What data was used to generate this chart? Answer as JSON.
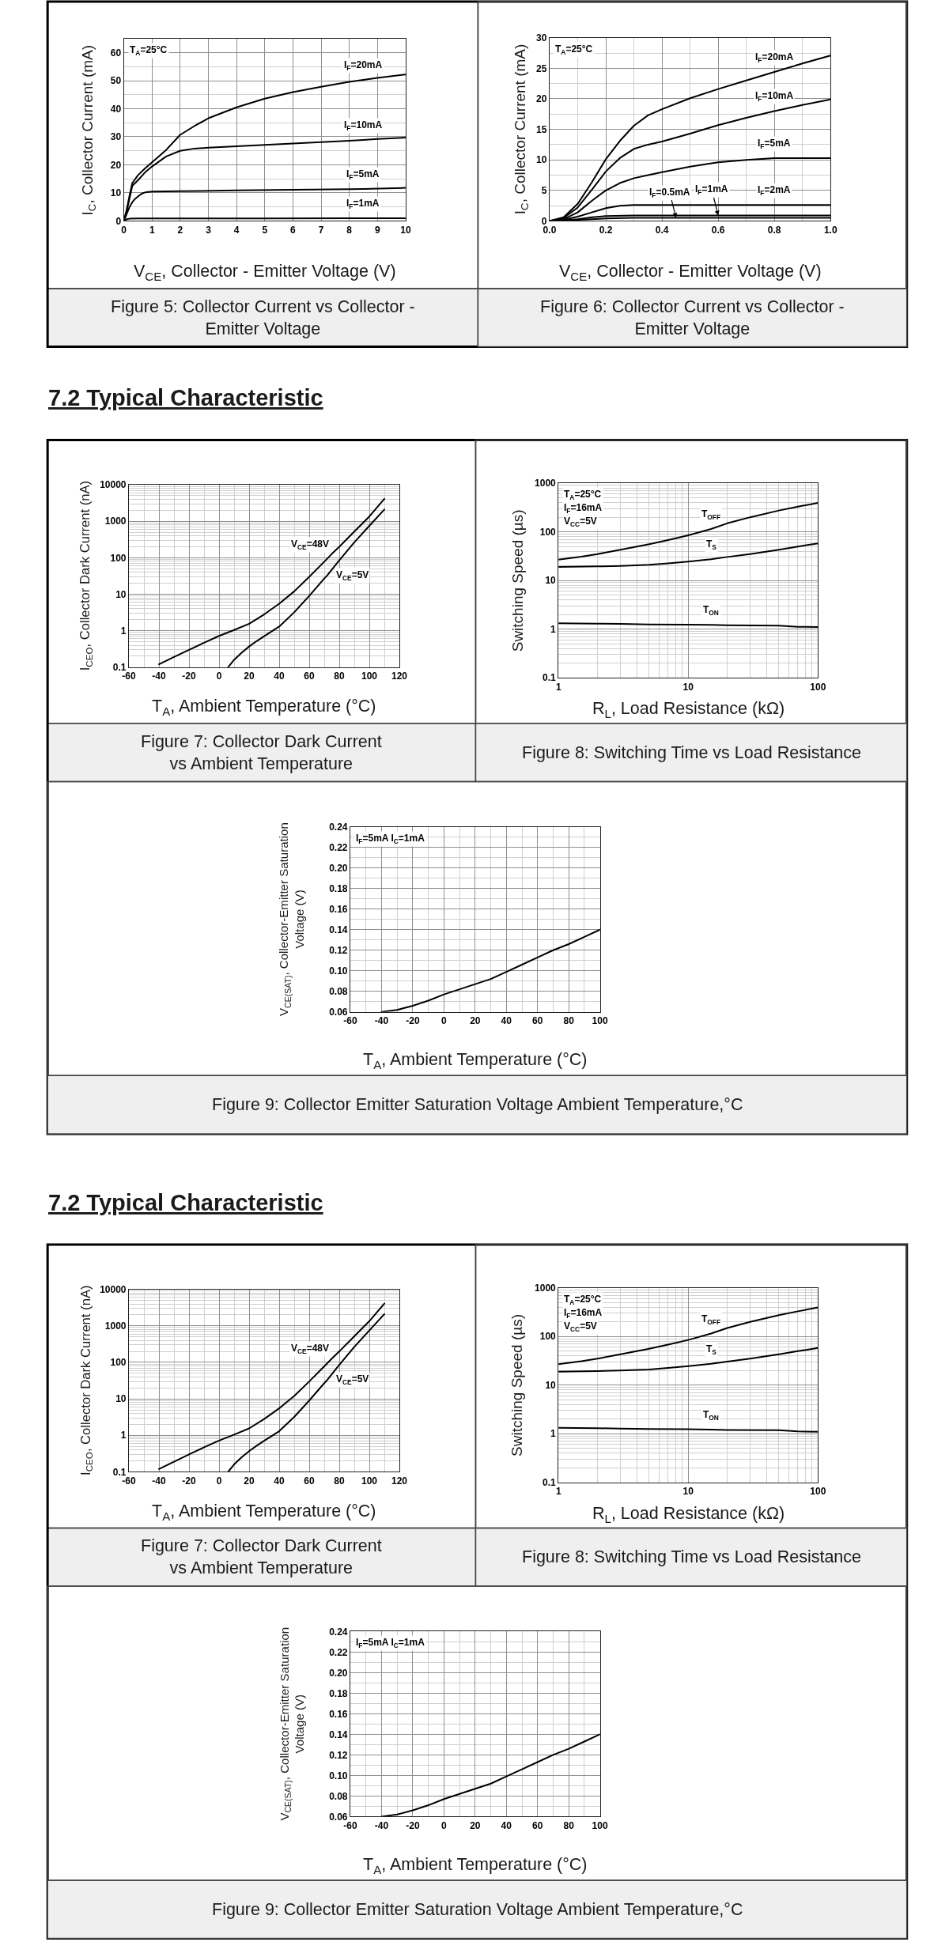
{
  "chart_data": [
    {
      "type": "line",
      "title": "Figure 5: Collector Current vs Collector -\nEmitter Voltage",
      "xlabel": "V$_{CE}$, Collector - Emitter Voltage (V)",
      "ylabel": "I$_{C}$, Collector Current (mA)",
      "xlim": [
        0,
        10
      ],
      "ylim": [
        0,
        65
      ],
      "xticks": [
        0,
        1,
        2,
        3,
        4,
        5,
        6,
        7,
        8,
        9,
        10
      ],
      "yticks": [
        0,
        {
          "value": 5,
          "label": null
        },
        10,
        {
          "value": 15,
          "label": null
        },
        20,
        {
          "value": 25,
          "label": null
        },
        30,
        {
          "value": 35,
          "label": null
        },
        40,
        {
          "value": 45,
          "label": null
        },
        50,
        {
          "value": 55,
          "label": null
        },
        60
      ],
      "grid": true,
      "annotations": [
        "T$_{A}$=25°C",
        {
          "text": "I$_{F}$=20mA",
          "x": 8.5,
          "y": 50.3
        },
        {
          "text": "I$_{F}$=10mA",
          "x": 8.5,
          "y": 28.9
        },
        {
          "text": "I$_{F}$=5mA",
          "x": 8.5,
          "y": 11.4
        },
        {
          "text": "I$_{F}$=1mA",
          "x": 8.5,
          "y": 1
        }
      ],
      "series": [
        {
          "color": "#000000",
          "x": [
            0,
            0.1,
            0.2,
            0.3,
            0.5,
            0.75,
            1,
            1.5,
            2,
            2.5,
            3,
            4,
            5,
            6,
            7,
            8,
            8.5,
            9,
            10
          ],
          "values": [
            0,
            4,
            9,
            13.5,
            16.3,
            18.7,
            20.9,
            25.3,
            30.7,
            33.8,
            36.6,
            40.5,
            43.6,
            45.9,
            47.8,
            49.6,
            50.3,
            51,
            52.2
          ]
        },
        {
          "color": "#000000",
          "x": [
            0,
            0.1,
            0.2,
            0.3,
            0.5,
            0.75,
            1,
            1.5,
            2,
            2.5,
            3,
            4,
            5,
            6,
            7,
            8,
            8.5,
            9,
            10
          ],
          "values": [
            0,
            3.5,
            8,
            12.5,
            14.5,
            17.3,
            19.4,
            23,
            25,
            25.8,
            26.1,
            26.6,
            27.1,
            27.6,
            28.1,
            28.6,
            28.9,
            29.2,
            29.7
          ]
        },
        {
          "color": "#000000",
          "x": [
            0,
            0.1,
            0.2,
            0.3,
            0.4,
            0.5,
            0.6,
            0.7,
            0.8,
            1,
            2,
            4,
            6,
            8,
            8.5,
            10
          ],
          "values": [
            0,
            2.5,
            5,
            6.7,
            7.9,
            8.7,
            9.5,
            10,
            10.3,
            10.5,
            10.6,
            10.9,
            11.1,
            11.3,
            11.4,
            11.8
          ]
        },
        {
          "color": "#000000",
          "x": [
            0,
            0.1,
            0.2,
            0.5,
            2,
            5,
            8,
            8.5,
            10
          ],
          "values": [
            0,
            0.6,
            0.8,
            0.9,
            0.9,
            0.9,
            1,
            1,
            1
          ]
        }
      ]
    },
    {
      "type": "line",
      "title": "Figure 6: Collector Current vs Collector -\nEmitter Voltage",
      "xlabel": "V$_{CE}$, Collector - Emitter Voltage (V)",
      "ylabel": "I$_{C}$, Collector Current (mA)",
      "xlim": [
        0,
        1
      ],
      "ylim": [
        0,
        30
      ],
      "xticks": [
        {
          "value": 0,
          "label": "0.0"
        },
        {
          "value": 0.1,
          "label": null
        },
        0.2,
        {
          "value": 0.3,
          "label": null
        },
        0.4,
        {
          "value": 0.5,
          "label": null
        },
        0.6,
        {
          "value": 0.7,
          "label": null
        },
        0.8,
        {
          "value": 0.9,
          "label": null
        },
        {
          "value": 1,
          "label": "1.0"
        }
      ],
      "yticks": [
        0,
        {
          "value": 2.5,
          "label": null
        },
        5,
        {
          "value": 7.5,
          "label": null
        },
        10,
        {
          "value": 12.5,
          "label": null
        },
        15,
        {
          "value": 17.5,
          "label": null
        },
        20,
        {
          "value": 22.5,
          "label": null
        },
        25,
        {
          "value": 27.5,
          "label": null
        },
        30
      ],
      "grid": true,
      "annotations": [
        "T$_{A}$=25°C",
        {
          "text": "I$_{F}$=20mA",
          "x": 0.8,
          "y": 24.4
        },
        {
          "text": "I$_{F}$=10mA",
          "x": 0.8,
          "y": 18
        },
        {
          "text": "I$_{F}$=5mA",
          "x": 0.8,
          "y": 10.3
        },
        {
          "text": "I$_{F}$=2mA",
          "x": 0.8,
          "y": 2.6
        },
        {
          "text": "I$_{F}$=0.5mA",
          "x": 0.45,
          "y": 0.5
        },
        {
          "text": "I$_{F}$=1mA",
          "x": 0.6,
          "y": 0.9
        }
      ],
      "series": [
        {
          "color": "#000000",
          "x": [
            0,
            0.05,
            0.1,
            0.15,
            0.2,
            0.25,
            0.3,
            0.35,
            0.4,
            0.5,
            0.6,
            0.7,
            0.8,
            0.9,
            1.0
          ],
          "values": [
            0,
            0.6,
            2.8,
            6.3,
            10.1,
            13.1,
            15.6,
            17.3,
            18.3,
            20.1,
            21.6,
            23,
            24.4,
            25.8,
            27.1
          ]
        },
        {
          "color": "#000000",
          "x": [
            0,
            0.05,
            0.1,
            0.15,
            0.2,
            0.25,
            0.3,
            0.35,
            0.4,
            0.5,
            0.6,
            0.7,
            0.8,
            0.9,
            1.0
          ],
          "values": [
            0,
            0.5,
            2.2,
            5.1,
            8.1,
            10.3,
            11.8,
            12.5,
            13,
            14.3,
            15.7,
            16.9,
            18,
            19,
            19.9
          ]
        },
        {
          "color": "#000000",
          "x": [
            0,
            0.05,
            0.1,
            0.15,
            0.2,
            0.25,
            0.3,
            0.35,
            0.4,
            0.5,
            0.6,
            0.7,
            0.8,
            0.9,
            1.0
          ],
          "values": [
            0,
            0.3,
            1.4,
            3.3,
            5,
            6.2,
            7,
            7.5,
            8,
            8.9,
            9.6,
            10,
            10.3,
            10.3,
            10.3
          ]
        },
        {
          "color": "#000000",
          "x": [
            0,
            0.05,
            0.1,
            0.15,
            0.2,
            0.25,
            0.3,
            0.4,
            0.6,
            0.8,
            1.0
          ],
          "values": [
            0,
            0.2,
            0.7,
            1.4,
            2.1,
            2.5,
            2.6,
            2.6,
            2.6,
            2.6,
            2.6
          ]
        },
        {
          "color": "#000000",
          "x": [
            0,
            0.05,
            0.1,
            0.15,
            0.2,
            0.3,
            0.5,
            0.6,
            1.0
          ],
          "values": [
            0,
            0.1,
            0.3,
            0.6,
            0.8,
            0.9,
            0.9,
            0.9,
            0.9
          ]
        },
        {
          "color": "#000000",
          "x": [
            0,
            0.1,
            0.2,
            0.3,
            0.45,
            0.5,
            1.0
          ],
          "values": [
            0,
            0.2,
            0.4,
            0.5,
            0.5,
            0.5,
            0.5
          ]
        }
      ]
    },
    {
      "type": "line",
      "subtitle": "7.2 Typical Characteristic",
      "title": "Figure 7: Collector Dark Current\nvs Ambient Temperature",
      "xlabel": "T$_{A}$, Ambient Temperature (°C)",
      "ylabel": "I$_{CEO}$, Collector Dark Current (nA)",
      "log": true,
      "xlim": [
        -60,
        120
      ],
      "ylim": [
        0.1,
        10000
      ],
      "xticks": [
        -60,
        {
          "value": -50,
          "label": null
        },
        -40,
        {
          "value": -30,
          "label": null
        },
        -20,
        {
          "value": -10,
          "label": null
        },
        0,
        {
          "value": 10,
          "label": null
        },
        20,
        {
          "value": 30,
          "label": null
        },
        40,
        {
          "value": 50,
          "label": null
        },
        60,
        {
          "value": 70,
          "label": null
        },
        80,
        {
          "value": 90,
          "label": null
        },
        100,
        {
          "value": 110,
          "label": null
        },
        120
      ],
      "yticks": [
        0.1,
        {
          "value": 0.2,
          "label": null
        },
        {
          "value": 0.3,
          "label": null
        },
        {
          "value": 0.4,
          "label": null
        },
        {
          "value": 0.5,
          "label": null
        },
        {
          "value": 0.6,
          "label": null
        },
        {
          "value": 0.7,
          "label": null
        },
        {
          "value": 0.8,
          "label": null
        },
        {
          "value": 0.9,
          "label": null
        },
        1,
        {
          "value": 2,
          "label": null
        },
        {
          "value": 3,
          "label": null
        },
        {
          "value": 4,
          "label": null
        },
        {
          "value": 5,
          "label": null
        },
        {
          "value": 6,
          "label": null
        },
        {
          "value": 7,
          "label": null
        },
        {
          "value": 8,
          "label": null
        },
        {
          "value": 9,
          "label": null
        },
        10,
        {
          "value": 20,
          "label": null
        },
        {
          "value": 30,
          "label": null
        },
        {
          "value": 40,
          "label": null
        },
        {
          "value": 50,
          "label": null
        },
        {
          "value": 60,
          "label": null
        },
        {
          "value": 70,
          "label": null
        },
        {
          "value": 80,
          "label": null
        },
        {
          "value": 90,
          "label": null
        },
        100,
        {
          "value": 200,
          "label": null
        },
        {
          "value": 300,
          "label": null
        },
        {
          "value": 400,
          "label": null
        },
        {
          "value": 500,
          "label": null
        },
        {
          "value": 600,
          "label": null
        },
        {
          "value": 700,
          "label": null
        },
        {
          "value": 800,
          "label": null
        },
        {
          "value": 900,
          "label": null
        },
        1000,
        {
          "value": 2000,
          "label": null
        },
        {
          "value": 3000,
          "label": null
        },
        {
          "value": 4000,
          "label": null
        },
        {
          "value": 5000,
          "label": null
        },
        {
          "value": 6000,
          "label": null
        },
        {
          "value": 7000,
          "label": null
        },
        {
          "value": 8000,
          "label": null
        },
        {
          "value": 9000,
          "label": null
        },
        10000
      ],
      "grid": true,
      "annotations": [
        {
          "text": "V$_{CE}$=48V",
          "x": 75,
          "y": 127
        },
        {
          "text": "V$_{CE}$=5V",
          "x": 72,
          "y": 33
        }
      ],
      "series": [
        {
          "color": "#000000",
          "x": [
            -40,
            -30,
            -20,
            -10,
            0,
            10,
            20,
            30,
            40,
            50,
            60,
            70,
            75,
            80,
            90,
            100,
            110
          ],
          "values": [
            0.12,
            0.19,
            0.3,
            0.47,
            0.72,
            1.05,
            1.55,
            2.8,
            5.5,
            12,
            30,
            78,
            127,
            200,
            520,
            1350,
            4100
          ]
        },
        {
          "color": "#000000",
          "x": [
            6,
            10,
            15,
            20,
            25,
            30,
            40,
            50,
            60,
            70,
            72,
            80,
            90,
            100,
            110
          ],
          "values": [
            0.1,
            0.16,
            0.25,
            0.37,
            0.52,
            0.71,
            1.3,
            3.2,
            9,
            27,
            33,
            85,
            265,
            750,
            2100
          ]
        }
      ]
    },
    {
      "type": "line",
      "title": "Figure 8: Switching Time vs Load Resistance",
      "xlabel": "R$_{L}$, Load Resistance (kΩ)",
      "ylabel": "Switching Speed (µs)",
      "log": "xy",
      "xlim": [
        1,
        100
      ],
      "ylim": [
        0.1,
        1000
      ],
      "xticks": [
        1,
        {
          "value": 2,
          "label": null
        },
        {
          "value": 3,
          "label": null
        },
        {
          "value": 4,
          "label": null
        },
        {
          "value": 5,
          "label": null
        },
        {
          "value": 6,
          "label": null
        },
        {
          "value": 7,
          "label": null
        },
        {
          "value": 8,
          "label": null
        },
        {
          "value": 9,
          "label": null
        },
        10,
        {
          "value": 20,
          "label": null
        },
        {
          "value": 30,
          "label": null
        },
        {
          "value": 40,
          "label": null
        },
        {
          "value": 50,
          "label": null
        },
        {
          "value": 60,
          "label": null
        },
        {
          "value": 70,
          "label": null
        },
        {
          "value": 80,
          "label": null
        },
        {
          "value": 90,
          "label": null
        },
        100
      ],
      "yticks": [
        0.1,
        {
          "value": 0.2,
          "label": null
        },
        {
          "value": 0.3,
          "label": null
        },
        {
          "value": 0.4,
          "label": null
        },
        {
          "value": 0.5,
          "label": null
        },
        {
          "value": 0.6,
          "label": null
        },
        {
          "value": 0.7,
          "label": null
        },
        {
          "value": 0.8,
          "label": null
        },
        {
          "value": 0.9,
          "label": null
        },
        1,
        {
          "value": 2,
          "label": null
        },
        {
          "value": 3,
          "label": null
        },
        {
          "value": 4,
          "label": null
        },
        {
          "value": 5,
          "label": null
        },
        {
          "value": 6,
          "label": null
        },
        {
          "value": 7,
          "label": null
        },
        {
          "value": 8,
          "label": null
        },
        {
          "value": 9,
          "label": null
        },
        10,
        {
          "value": 20,
          "label": null
        },
        {
          "value": 30,
          "label": null
        },
        {
          "value": 40,
          "label": null
        },
        {
          "value": 50,
          "label": null
        },
        {
          "value": 60,
          "label": null
        },
        {
          "value": 70,
          "label": null
        },
        {
          "value": 80,
          "label": null
        },
        {
          "value": 90,
          "label": null
        },
        100,
        {
          "value": 200,
          "label": null
        },
        {
          "value": 300,
          "label": null
        },
        {
          "value": 400,
          "label": null
        },
        {
          "value": 500,
          "label": null
        },
        {
          "value": 600,
          "label": null
        },
        {
          "value": 700,
          "label": null
        },
        {
          "value": 800,
          "label": null
        },
        {
          "value": 900,
          "label": null
        },
        1000
      ],
      "grid": true,
      "annotations": [
        "T$_{A}$=25°C",
        "I$_{F}$=16mA",
        "V$_{CC}$=5V",
        {
          "text": "T$_{OFF}$",
          "x": 15,
          "y": 115
        },
        {
          "text": "T$_{S}$",
          "x": 15,
          "y": 27.5
        },
        {
          "text": "T$_{ON}$",
          "x": 15,
          "y": 1.22
        }
      ],
      "series": [
        {
          "color": "#000000",
          "x": [
            1,
            1.5,
            2,
            3,
            5,
            7,
            10,
            15,
            20,
            30,
            50,
            70,
            100
          ],
          "values": [
            27,
            31,
            35,
            43,
            56,
            68,
            85,
            115,
            150,
            200,
            275,
            330,
            395
          ]
        },
        {
          "color": "#000000",
          "x": [
            1,
            2,
            3,
            5,
            7,
            10,
            15,
            20,
            30,
            50,
            70,
            100
          ],
          "values": [
            19,
            19.5,
            20,
            21,
            22.5,
            24.5,
            27.5,
            30.5,
            35,
            43,
            50,
            58
          ]
        },
        {
          "color": "#000000",
          "x": [
            1,
            2,
            3,
            5,
            10,
            15,
            20,
            50,
            70,
            100
          ],
          "values": [
            1.32,
            1.3,
            1.28,
            1.25,
            1.24,
            1.22,
            1.2,
            1.18,
            1.12,
            1.1
          ]
        }
      ]
    },
    {
      "type": "line",
      "title": "Figure 9: Collector Emitter Saturation Voltage Ambient Temperature,°C",
      "xlabel": "T$_{A}$, Ambient Temperature (°C)",
      "ylabel": "V$_{CE(SAT)}$, Collector-Emitter Saturation\nVoltage (V)",
      "xlim": [
        -60,
        100
      ],
      "ylim": [
        0.06,
        0.24
      ],
      "xticks": [
        -60,
        {
          "value": -50,
          "label": null
        },
        -40,
        {
          "value": -30,
          "label": null
        },
        -20,
        {
          "value": -10,
          "label": null
        },
        0,
        {
          "value": 10,
          "label": null
        },
        20,
        {
          "value": 30,
          "label": null
        },
        40,
        {
          "value": 50,
          "label": null
        },
        60,
        {
          "value": 70,
          "label": null
        },
        80,
        {
          "value": 90,
          "label": null
        },
        100
      ],
      "yticks": [
        0.06,
        {
          "value": 0.07,
          "label": null
        },
        0.08,
        {
          "value": 0.09,
          "label": null
        },
        {
          "value": 0.1,
          "label": "0.10"
        },
        {
          "value": 0.11,
          "label": null
        },
        0.12,
        {
          "value": 0.13,
          "label": null
        },
        0.14,
        {
          "value": 0.15,
          "label": null
        },
        0.16,
        {
          "value": 0.17,
          "label": null
        },
        0.18,
        {
          "value": 0.19,
          "label": null
        },
        {
          "value": 0.2,
          "label": "0.20"
        },
        {
          "value": 0.21,
          "label": null
        },
        0.22,
        {
          "value": 0.23,
          "label": null
        },
        0.24
      ],
      "grid": true,
      "annotations": [
        "I$_{F}$=5mA I$_{C}$=1mA"
      ],
      "series": [
        {
          "color": "#000000",
          "x": [
            -40,
            -30,
            -20,
            -10,
            0,
            10,
            20,
            30,
            40,
            50,
            60,
            70,
            80,
            90,
            100
          ],
          "values": [
            0.06,
            0.062,
            0.066,
            0.071,
            0.077,
            0.082,
            0.087,
            0.092,
            0.099,
            0.106,
            0.113,
            0.12,
            0.126,
            0.133,
            0.14
          ]
        }
      ]
    },
    {
      "type": "line",
      "subtitle": "7.2 Typical Characteristic",
      "title": "Figure 7: Collector Dark Current\nvs Ambient Temperature",
      "xlabel": "T$_{A}$, Ambient Temperature (°C)",
      "ylabel": "I$_{CEO}$, Collector Dark Current (nA)",
      "log": true,
      "xlim": [
        -60,
        120
      ],
      "ylim": [
        0.1,
        10000
      ],
      "xticks": [
        -60,
        {
          "value": -50,
          "label": null
        },
        -40,
        {
          "value": -30,
          "label": null
        },
        -20,
        {
          "value": -10,
          "label": null
        },
        0,
        {
          "value": 10,
          "label": null
        },
        20,
        {
          "value": 30,
          "label": null
        },
        40,
        {
          "value": 50,
          "label": null
        },
        60,
        {
          "value": 70,
          "label": null
        },
        80,
        {
          "value": 90,
          "label": null
        },
        100,
        {
          "value": 110,
          "label": null
        },
        120
      ],
      "yticks": [
        0.1,
        {
          "value": 0.2,
          "label": null
        },
        {
          "value": 0.3,
          "label": null
        },
        {
          "value": 0.4,
          "label": null
        },
        {
          "value": 0.5,
          "label": null
        },
        {
          "value": 0.6,
          "label": null
        },
        {
          "value": 0.7,
          "label": null
        },
        {
          "value": 0.8,
          "label": null
        },
        {
          "value": 0.9,
          "label": null
        },
        1,
        {
          "value": 2,
          "label": null
        },
        {
          "value": 3,
          "label": null
        },
        {
          "value": 4,
          "label": null
        },
        {
          "value": 5,
          "label": null
        },
        {
          "value": 6,
          "label": null
        },
        {
          "value": 7,
          "label": null
        },
        {
          "value": 8,
          "label": null
        },
        {
          "value": 9,
          "label": null
        },
        10,
        {
          "value": 20,
          "label": null
        },
        {
          "value": 30,
          "label": null
        },
        {
          "value": 40,
          "label": null
        },
        {
          "value": 50,
          "label": null
        },
        {
          "value": 60,
          "label": null
        },
        {
          "value": 70,
          "label": null
        },
        {
          "value": 80,
          "label": null
        },
        {
          "value": 90,
          "label": null
        },
        100,
        {
          "value": 200,
          "label": null
        },
        {
          "value": 300,
          "label": null
        },
        {
          "value": 400,
          "label": null
        },
        {
          "value": 500,
          "label": null
        },
        {
          "value": 600,
          "label": null
        },
        {
          "value": 700,
          "label": null
        },
        {
          "value": 800,
          "label": null
        },
        {
          "value": 900,
          "label": null
        },
        1000,
        {
          "value": 2000,
          "label": null
        },
        {
          "value": 3000,
          "label": null
        },
        {
          "value": 4000,
          "label": null
        },
        {
          "value": 5000,
          "label": null
        },
        {
          "value": 6000,
          "label": null
        },
        {
          "value": 7000,
          "label": null
        },
        {
          "value": 8000,
          "label": null
        },
        {
          "value": 9000,
          "label": null
        },
        10000
      ],
      "grid": true,
      "annotations": [
        {
          "text": "V$_{CE}$=48V",
          "x": 75,
          "y": 127
        },
        {
          "text": "V$_{CE}$=5V",
          "x": 72,
          "y": 33
        }
      ],
      "series": [
        {
          "color": "#000000",
          "x": [
            -40,
            -30,
            -20,
            -10,
            0,
            10,
            20,
            30,
            40,
            50,
            60,
            70,
            75,
            80,
            90,
            100,
            110
          ],
          "values": [
            0.12,
            0.19,
            0.3,
            0.47,
            0.72,
            1.05,
            1.55,
            2.8,
            5.5,
            12,
            30,
            78,
            127,
            200,
            520,
            1350,
            4100
          ]
        },
        {
          "color": "#000000",
          "x": [
            6,
            10,
            15,
            20,
            25,
            30,
            40,
            50,
            60,
            70,
            72,
            80,
            90,
            100,
            110
          ],
          "values": [
            0.1,
            0.16,
            0.25,
            0.37,
            0.52,
            0.71,
            1.3,
            3.2,
            9,
            27,
            33,
            85,
            265,
            750,
            2100
          ]
        }
      ]
    },
    {
      "type": "line",
      "title": "Figure 8: Switching Time vs Load Resistance",
      "xlabel": "R$_{L}$, Load Resistance (kΩ)",
      "ylabel": "Switching Speed (µs)",
      "log": "xy",
      "xlim": [
        1,
        100
      ],
      "ylim": [
        0.1,
        1000
      ],
      "xticks": [
        1,
        {
          "value": 2,
          "label": null
        },
        {
          "value": 3,
          "label": null
        },
        {
          "value": 4,
          "label": null
        },
        {
          "value": 5,
          "label": null
        },
        {
          "value": 6,
          "label": null
        },
        {
          "value": 7,
          "label": null
        },
        {
          "value": 8,
          "label": null
        },
        {
          "value": 9,
          "label": null
        },
        10,
        {
          "value": 20,
          "label": null
        },
        {
          "value": 30,
          "label": null
        },
        {
          "value": 40,
          "label": null
        },
        {
          "value": 50,
          "label": null
        },
        {
          "value": 60,
          "label": null
        },
        {
          "value": 70,
          "label": null
        },
        {
          "value": 80,
          "label": null
        },
        {
          "value": 90,
          "label": null
        },
        100
      ],
      "yticks": [
        0.1,
        {
          "value": 0.2,
          "label": null
        },
        {
          "value": 0.3,
          "label": null
        },
        {
          "value": 0.4,
          "label": null
        },
        {
          "value": 0.5,
          "label": null
        },
        {
          "value": 0.6,
          "label": null
        },
        {
          "value": 0.7,
          "label": null
        },
        {
          "value": 0.8,
          "label": null
        },
        {
          "value": 0.9,
          "label": null
        },
        1,
        {
          "value": 2,
          "label": null
        },
        {
          "value": 3,
          "label": null
        },
        {
          "value": 4,
          "label": null
        },
        {
          "value": 5,
          "label": null
        },
        {
          "value": 6,
          "label": null
        },
        {
          "value": 7,
          "label": null
        },
        {
          "value": 8,
          "label": null
        },
        {
          "value": 9,
          "label": null
        },
        10,
        {
          "value": 20,
          "label": null
        },
        {
          "value": 30,
          "label": null
        },
        {
          "value": 40,
          "label": null
        },
        {
          "value": 50,
          "label": null
        },
        {
          "value": 60,
          "label": null
        },
        {
          "value": 70,
          "label": null
        },
        {
          "value": 80,
          "label": null
        },
        {
          "value": 90,
          "label": null
        },
        100,
        {
          "value": 200,
          "label": null
        },
        {
          "value": 300,
          "label": null
        },
        {
          "value": 400,
          "label": null
        },
        {
          "value": 500,
          "label": null
        },
        {
          "value": 600,
          "label": null
        },
        {
          "value": 700,
          "label": null
        },
        {
          "value": 800,
          "label": null
        },
        {
          "value": 900,
          "label": null
        },
        1000
      ],
      "grid": true,
      "annotations": [
        "T$_{A}$=25°C",
        "I$_{F}$=16mA",
        "V$_{CC}$=5V",
        {
          "text": "T$_{OFF}$",
          "x": 15,
          "y": 115
        },
        {
          "text": "T$_{S}$",
          "x": 15,
          "y": 27.5
        },
        {
          "text": "T$_{ON}$",
          "x": 15,
          "y": 1.22
        }
      ],
      "series": [
        {
          "color": "#000000",
          "x": [
            1,
            1.5,
            2,
            3,
            5,
            7,
            10,
            15,
            20,
            30,
            50,
            70,
            100
          ],
          "values": [
            27,
            31,
            35,
            43,
            56,
            68,
            85,
            115,
            150,
            200,
            275,
            330,
            395
          ]
        },
        {
          "color": "#000000",
          "x": [
            1,
            2,
            3,
            5,
            7,
            10,
            15,
            20,
            30,
            50,
            70,
            100
          ],
          "values": [
            19,
            19.5,
            20,
            21,
            22.5,
            24.5,
            27.5,
            30.5,
            35,
            43,
            50,
            58
          ]
        },
        {
          "color": "#000000",
          "x": [
            1,
            2,
            3,
            5,
            10,
            15,
            20,
            50,
            70,
            100
          ],
          "values": [
            1.32,
            1.3,
            1.28,
            1.25,
            1.24,
            1.22,
            1.2,
            1.18,
            1.12,
            1.1
          ]
        }
      ]
    },
    {
      "type": "line",
      "title": "Figure 9: Collector Emitter Saturation Voltage Ambient Temperature,°C",
      "xlabel": "T$_{A}$, Ambient Temperature (°C)",
      "ylabel": "V$_{CE(SAT)}$, Collector-Emitter Saturation\nVoltage (V)",
      "xlim": [
        -60,
        100
      ],
      "ylim": [
        0.06,
        0.24
      ],
      "xticks": [
        -60,
        {
          "value": -50,
          "label": null
        },
        -40,
        {
          "value": -30,
          "label": null
        },
        -20,
        {
          "value": -10,
          "label": null
        },
        0,
        {
          "value": 10,
          "label": null
        },
        20,
        {
          "value": 30,
          "label": null
        },
        40,
        {
          "value": 50,
          "label": null
        },
        60,
        {
          "value": 70,
          "label": null
        },
        80,
        {
          "value": 90,
          "label": null
        },
        100
      ],
      "yticks": [
        0.06,
        {
          "value": 0.07,
          "label": null
        },
        0.08,
        {
          "value": 0.09,
          "label": null
        },
        {
          "value": 0.1,
          "label": "0.10"
        },
        {
          "value": 0.11,
          "label": null
        },
        0.12,
        {
          "value": 0.13,
          "label": null
        },
        0.14,
        {
          "value": 0.15,
          "label": null
        },
        0.16,
        {
          "value": 0.17,
          "label": null
        },
        0.18,
        {
          "value": 0.19,
          "label": null
        },
        {
          "value": 0.2,
          "label": "0.20"
        },
        {
          "value": 0.21,
          "label": null
        },
        0.22,
        {
          "value": 0.23,
          "label": null
        },
        0.24
      ],
      "grid": true,
      "annotations": [
        "I$_{F}$=5mA I$_{C}$=1mA"
      ],
      "series": [
        {
          "color": "#000000",
          "x": [
            -40,
            -30,
            -20,
            -10,
            0,
            10,
            20,
            30,
            40,
            50,
            60,
            70,
            80,
            90,
            100
          ],
          "values": [
            0.06,
            0.062,
            0.066,
            0.071,
            0.077,
            0.082,
            0.087,
            0.092,
            0.099,
            0.106,
            0.113,
            0.12,
            0.126,
            0.133,
            0.14
          ]
        }
      ]
    }
  ]
}
